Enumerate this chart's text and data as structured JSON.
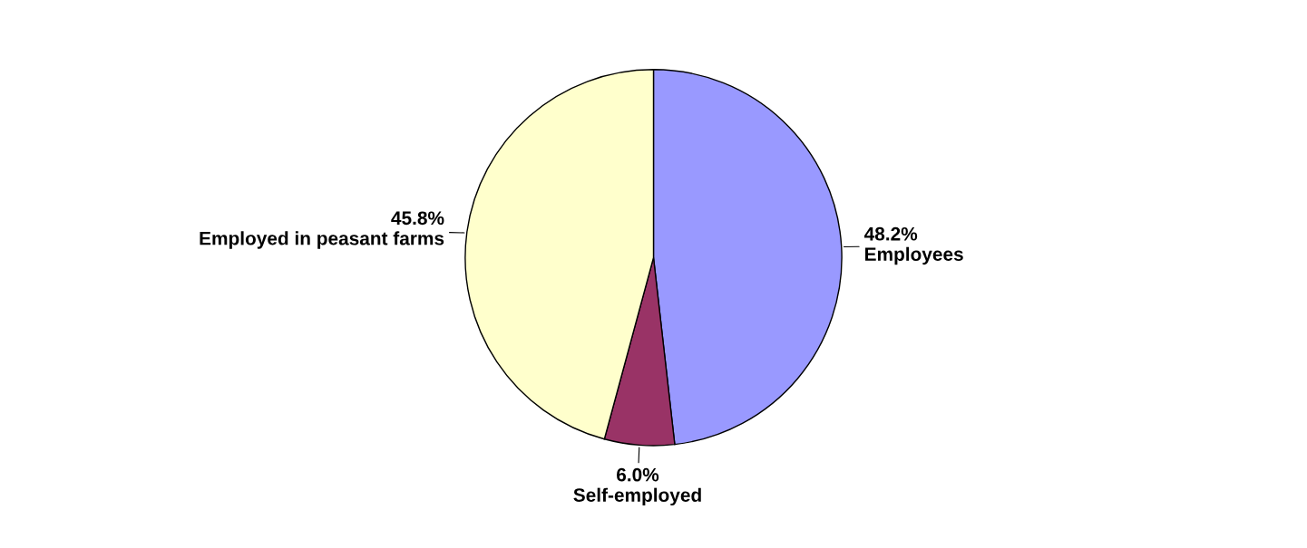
{
  "chart_data": {
    "type": "pie",
    "categories": [
      "Employees",
      "Self-employed",
      "Employed in peasant farms"
    ],
    "values": [
      48.2,
      6.0,
      45.8
    ],
    "value_labels": [
      "48.2%",
      "6.0%",
      "45.8%"
    ],
    "colors": [
      "#9999ff",
      "#993366",
      "#ffffcc"
    ]
  }
}
